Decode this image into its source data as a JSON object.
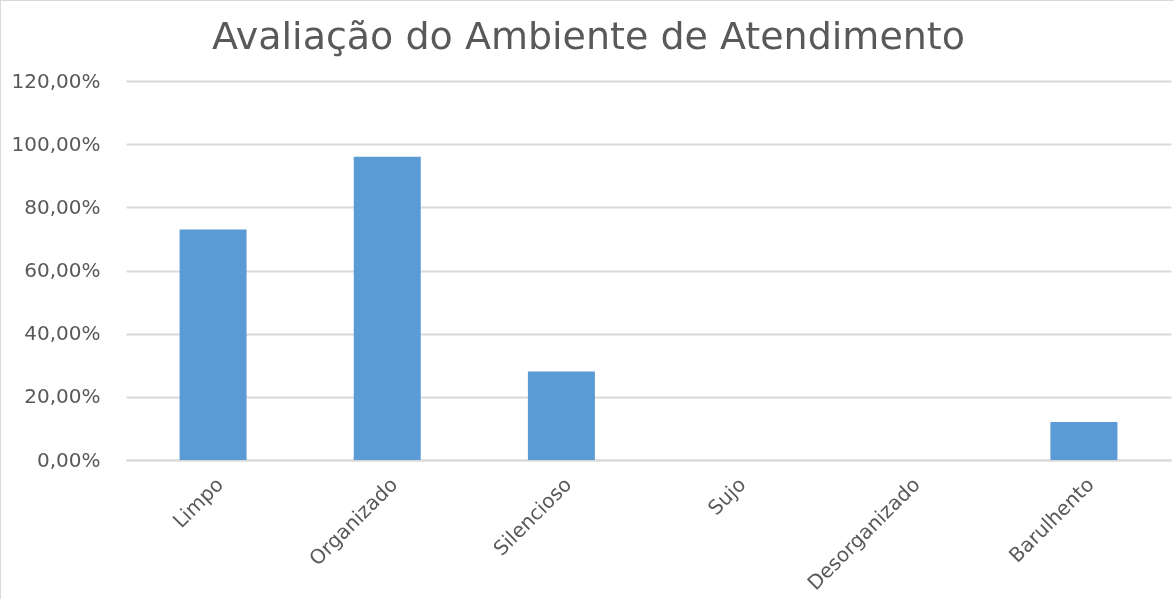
{
  "chart_data": {
    "type": "bar",
    "title": "Avaliação do Ambiente de Atendimento",
    "categories": [
      "Limpo",
      "Organizado",
      "Silencioso",
      "Sujo",
      "Desorganizado",
      "Barulhento"
    ],
    "values": [
      73,
      96,
      28,
      0,
      0,
      12
    ],
    "color": "#5b9bd5",
    "ylim": [
      0,
      120
    ],
    "yticks": [
      {
        "value": 0,
        "label": "0,00%"
      },
      {
        "value": 20,
        "label": "20,00%"
      },
      {
        "value": 40,
        "label": "40,00%"
      },
      {
        "value": 60,
        "label": "60,00%"
      },
      {
        "value": 80,
        "label": "80,00%"
      },
      {
        "value": 100,
        "label": "100,00%"
      },
      {
        "value": 120,
        "label": "120,00%"
      }
    ],
    "grid": "y"
  }
}
